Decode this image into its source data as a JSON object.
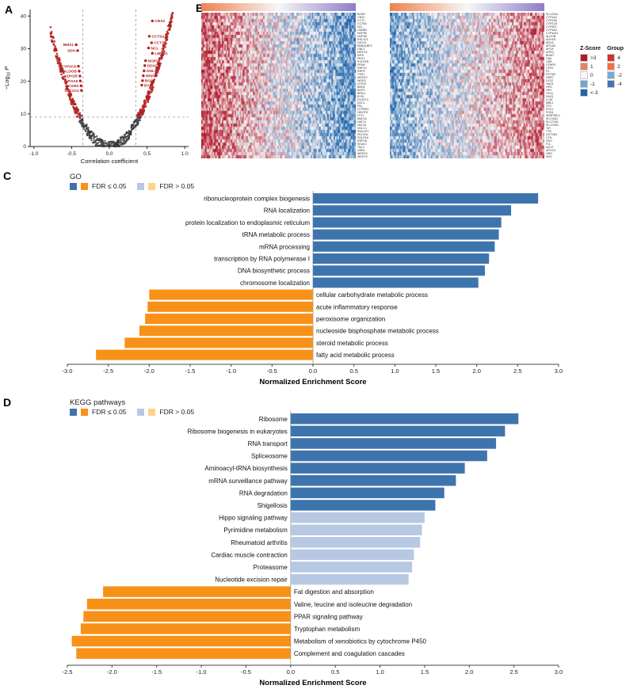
{
  "figure": {
    "letters": {
      "a": "A",
      "b": "B",
      "c": "C",
      "d": "D"
    }
  },
  "heatmap_legends": {
    "zscore": {
      "title": "Z-Score",
      "items": [
        {
          "label": ">3",
          "color": "#b2182b"
        },
        {
          "label": "1",
          "color": "#e58368"
        },
        {
          "label": "0",
          "color": "#f7f7f7"
        },
        {
          "label": "-1",
          "color": "#6fa7cf"
        },
        {
          "label": "<-3",
          "color": "#2166ac"
        }
      ]
    },
    "group": {
      "title": "Group",
      "items": [
        {
          "label": "4",
          "color": "#d73027"
        },
        {
          "label": "2",
          "color": "#f46d43"
        },
        {
          "label": "-2",
          "color": "#74add1"
        },
        {
          "label": "-4",
          "color": "#4575b4"
        }
      ]
    }
  },
  "chart_data": [
    {
      "id": "volcano",
      "type": "scatter",
      "xlabel": "Correlation coefficient",
      "ylabel": "-Log10 P",
      "ylabel_parts": {
        "pre": "−Log",
        "sub": "10",
        "post": " P"
      },
      "xlim": [
        -1.05,
        1.05
      ],
      "ylim": [
        0,
        42
      ],
      "xticks": [
        -1.0,
        -0.5,
        0.0,
        0.5,
        1.0
      ],
      "yticks": [
        0,
        10,
        20,
        30,
        40
      ],
      "threshold_x": [
        -0.35,
        0.35
      ],
      "threshold_y": 9,
      "sig_color": "#b22222",
      "nonsig_color": "#3a3a3a",
      "point_cloud": {
        "count": 750,
        "x_min": -0.78,
        "x_max": 0.84,
        "curve_k": 58,
        "noise": 1.6,
        "seed": 7
      },
      "labeled_genes": [
        {
          "name": "CBX3",
          "x": 0.57,
          "y": 38.5
        },
        {
          "name": "CCT6A",
          "x": 0.53,
          "y": 33.8
        },
        {
          "name": "CCT2",
          "x": 0.56,
          "y": 31.8
        },
        {
          "name": "NCL",
          "x": 0.52,
          "y": 30.2
        },
        {
          "name": "LMNB1",
          "x": 0.57,
          "y": 28.6
        },
        {
          "name": "NOP56",
          "x": 0.48,
          "y": 26.3
        },
        {
          "name": "DDX21",
          "x": 0.47,
          "y": 24.8
        },
        {
          "name": "GNL3",
          "x": 0.46,
          "y": 23.2
        },
        {
          "name": "RRP9",
          "x": 0.45,
          "y": 21.7
        },
        {
          "name": "BOP1",
          "x": 0.44,
          "y": 20.2
        },
        {
          "name": "BYSL",
          "x": 0.43,
          "y": 18.8
        },
        {
          "name": "BMS1",
          "x": -0.44,
          "y": 31.2
        },
        {
          "name": "XDH",
          "x": -0.42,
          "y": 29.4
        },
        {
          "name": "CYP2C8",
          "x": -0.41,
          "y": 24.6
        },
        {
          "name": "ALDOB",
          "x": -0.4,
          "y": 23.1
        },
        {
          "name": "ADH1B",
          "x": -0.39,
          "y": 21.6
        },
        {
          "name": "APOA5",
          "x": -0.385,
          "y": 20.1
        },
        {
          "name": "ACSM3",
          "x": -0.375,
          "y": 18.6
        },
        {
          "name": "SLC2A2",
          "x": -0.37,
          "y": 17.2
        }
      ]
    },
    {
      "id": "heatmap_left",
      "type": "heatmap",
      "rows": 46,
      "cols": 120,
      "seed": 11,
      "amp": 2.1,
      "noise": 3.4,
      "direction": "warm-left",
      "annotation_gradient": [
        "#ef8250",
        "#f7f7f7",
        "#8d7dc9"
      ],
      "genes": [
        "BZW2",
        "CBX3",
        "CCT2",
        "CCT6A",
        "NCL",
        "LMNB1",
        "NOP56",
        "NOP58",
        "RSL1D1",
        "DDX21",
        "EBNA1BP2",
        "GNL3",
        "MRTO4",
        "NIFK",
        "PES1",
        "POLR1B",
        "PPAN",
        "RRP12",
        "RRP9",
        "TSR1",
        "WDR12",
        "WDR3",
        "UTP20",
        "BMS1",
        "BOP1",
        "BRIX1",
        "BYSL",
        "DCAF13",
        "DKC1",
        "FBL",
        "GTPBP4",
        "HEATR1",
        "LTV1",
        "MAK16",
        "NAT10",
        "NOC2L",
        "NOLC1",
        "PAK1IP1",
        "PDCD11",
        "POLR1A",
        "RRP1B",
        "SDAD1",
        "TBL3",
        "URB1",
        "WDR43",
        "WDR75"
      ]
    },
    {
      "id": "heatmap_right",
      "type": "heatmap",
      "rows": 46,
      "cols": 120,
      "seed": 23,
      "amp": 1.7,
      "noise": 3.2,
      "direction": "warm-right",
      "annotation_gradient": [
        "#ef8250",
        "#f7f7f7",
        "#8d7dc9"
      ],
      "genes": [
        "SLC22A1",
        "CYP1A2",
        "CYP2A6",
        "CYP2C8",
        "CYP2E1",
        "CYP3A4",
        "CYP4A11",
        "ALDOB",
        "ADH1B",
        "ADH4",
        "APOA5",
        "APOF",
        "ASPG",
        "BHMT",
        "C8A",
        "C8B",
        "CFHR3",
        "CPS1",
        "F9",
        "FETUB",
        "G6PC",
        "GLS2",
        "HAO1",
        "HPD",
        "HPX",
        "ITIH4",
        "KNG1",
        "LCAT",
        "MBL2",
        "OTC",
        "PCK1",
        "PON1",
        "SERPINC1",
        "SLC10A1",
        "SLC27A5",
        "SLCO1B1",
        "TAT",
        "TTR",
        "UGT2B4",
        "VTN",
        "XDH",
        "F11",
        "AGXT",
        "APOC3",
        "HRG",
        "SDS"
      ]
    },
    {
      "id": "go",
      "type": "bar",
      "title": "GO",
      "xlabel": "Normalized Enrichment Score",
      "xlim": [
        -3.0,
        3.0
      ],
      "xtick_step": 0.5,
      "colors": {
        "pos_sig": "#3e74ad",
        "pos_nonsig": "#b7c9e2",
        "neg_sig": "#f79118",
        "neg_nonsig": "#fbd389"
      },
      "legend": [
        {
          "label": "FDR ≤ 0.05",
          "colors": [
            "#3e74ad",
            "#f79118"
          ]
        },
        {
          "label": "FDR > 0.05",
          "colors": [
            "#b7c9e2",
            "#fbd389"
          ]
        }
      ],
      "bars": [
        {
          "label": "ribonucleoprotein complex biogenesis",
          "value": 2.75,
          "group": "pos_sig"
        },
        {
          "label": "RNA localization",
          "value": 2.42,
          "group": "pos_sig"
        },
        {
          "label": "protein localization to endoplasmic reticulum",
          "value": 2.3,
          "group": "pos_sig"
        },
        {
          "label": "tRNA metabolic process",
          "value": 2.27,
          "group": "pos_sig"
        },
        {
          "label": "mRNA processing",
          "value": 2.22,
          "group": "pos_sig"
        },
        {
          "label": "transcription by RNA polymerase I",
          "value": 2.15,
          "group": "pos_sig"
        },
        {
          "label": "DNA biosynthetic process",
          "value": 2.1,
          "group": "pos_sig"
        },
        {
          "label": "chromosome localization",
          "value": 2.02,
          "group": "pos_sig"
        },
        {
          "label": "cellular carbohydrate metabolic process",
          "value": -2.0,
          "group": "neg_sig"
        },
        {
          "label": "acute inflammatory response",
          "value": -2.02,
          "group": "neg_sig"
        },
        {
          "label": "peroxisome organization",
          "value": -2.05,
          "group": "neg_sig"
        },
        {
          "label": "nucleoside bisphosphate metabolic process",
          "value": -2.12,
          "group": "neg_sig"
        },
        {
          "label": "steroid metabolic process",
          "value": -2.3,
          "group": "neg_sig"
        },
        {
          "label": "fatty acid metabolic process",
          "value": -2.65,
          "group": "neg_sig"
        }
      ]
    },
    {
      "id": "kegg",
      "type": "bar",
      "title": "KEGG pathways",
      "xlabel": "Normalized Enrichment Score",
      "xlim": [
        -2.5,
        3.0
      ],
      "xtick_step": 0.5,
      "colors": {
        "pos_sig": "#3e74ad",
        "pos_nonsig": "#b7c9e2",
        "neg_sig": "#f79118",
        "neg_nonsig": "#fbd389"
      },
      "legend": [
        {
          "label": "FDR ≤ 0.05",
          "colors": [
            "#3e74ad",
            "#f79118"
          ]
        },
        {
          "label": "FDR > 0.05",
          "colors": [
            "#b7c9e2",
            "#fbd389"
          ]
        }
      ],
      "bars": [
        {
          "label": "Ribosome",
          "value": 2.55,
          "group": "pos_sig"
        },
        {
          "label": "Ribosome biogenesis in eukaryotes",
          "value": 2.4,
          "group": "pos_sig"
        },
        {
          "label": "RNA transport",
          "value": 2.3,
          "group": "pos_sig"
        },
        {
          "label": "Spliceosome",
          "value": 2.2,
          "group": "pos_sig"
        },
        {
          "label": "Aminoacyl-tRNA biosynthesis",
          "value": 1.95,
          "group": "pos_sig"
        },
        {
          "label": "mRNA surveillance pathway",
          "value": 1.85,
          "group": "pos_sig"
        },
        {
          "label": "RNA degradation",
          "value": 1.72,
          "group": "pos_sig"
        },
        {
          "label": "Shigellosis",
          "value": 1.62,
          "group": "pos_sig"
        },
        {
          "label": "Hippo signaling pathway",
          "value": 1.5,
          "group": "pos_nonsig"
        },
        {
          "label": "Pyrimidine metabolism",
          "value": 1.47,
          "group": "pos_nonsig"
        },
        {
          "label": "Rheumatoid arthritis",
          "value": 1.45,
          "group": "pos_nonsig"
        },
        {
          "label": "Cardiac muscle contraction",
          "value": 1.38,
          "group": "pos_nonsig"
        },
        {
          "label": "Proteasome",
          "value": 1.36,
          "group": "pos_nonsig"
        },
        {
          "label": "Nucleotide excision repair",
          "value": 1.32,
          "group": "pos_nonsig"
        },
        {
          "label": "Fat digestion and absorption",
          "value": -2.1,
          "group": "neg_sig"
        },
        {
          "label": "Valine, leucine and isoleucine degradation",
          "value": -2.28,
          "group": "neg_sig"
        },
        {
          "label": "PPAR signaling pathway",
          "value": -2.32,
          "group": "neg_sig"
        },
        {
          "label": "Tryptophan metabolism",
          "value": -2.35,
          "group": "neg_sig"
        },
        {
          "label": "Metabolism of xenobiotics by cytochrome P450",
          "value": -2.45,
          "group": "neg_sig"
        },
        {
          "label": "Complement and coagulation cascades",
          "value": -2.4,
          "group": "neg_sig"
        }
      ]
    }
  ]
}
